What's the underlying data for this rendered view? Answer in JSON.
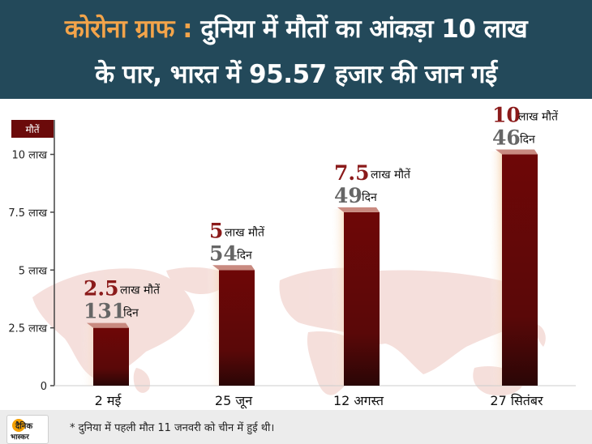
{
  "header": {
    "title_accent": "कोरोना ग्राफ :",
    "title_rest": "दुनिया में मौतों का आंकड़ा 10 लाख",
    "title_line2": "के पार, भारत में 95.57 हजार की जान गई"
  },
  "footer": {
    "note": "* दुनिया में पहली मौत 11 जनवरी को चीन में हुई थी।",
    "logo_line1": "दैनिक",
    "logo_line2": "भास्कर"
  },
  "colors": {
    "header_bg": "#23495a",
    "accent": "#f3a44a",
    "bar": "#6b0a0a",
    "bar_label_number": "#8b1a1a",
    "days_number": "#666666"
  },
  "chart_data": {
    "type": "bar",
    "legend_label": "मौतें",
    "categories": [
      "2 मई",
      "25 जून",
      "12 अगस्त",
      "27 सितंबर"
    ],
    "values": [
      2.5,
      5,
      7.5,
      10
    ],
    "ylim": [
      0,
      11
    ],
    "yticks": [
      {
        "value": 0,
        "label": "0"
      },
      {
        "value": 2.5,
        "label": "2.5 लाख"
      },
      {
        "value": 5,
        "label": "5 लाख"
      },
      {
        "value": 7.5,
        "label": "7.5 लाख"
      },
      {
        "value": 10,
        "label": "10 लाख"
      }
    ],
    "bar_labels": [
      {
        "number": "2.5",
        "unit": "लाख मौतें",
        "days": "131",
        "days_unit": "दिन"
      },
      {
        "number": "5",
        "unit": "लाख मौतें",
        "days": "54",
        "days_unit": "दिन"
      },
      {
        "number": "7.5",
        "unit": "लाख मौतें",
        "days": "49",
        "days_unit": "दिन"
      },
      {
        "number": "10",
        "unit": "लाख मौतें",
        "days": "46",
        "days_unit": "दिन"
      }
    ],
    "grid": false
  }
}
